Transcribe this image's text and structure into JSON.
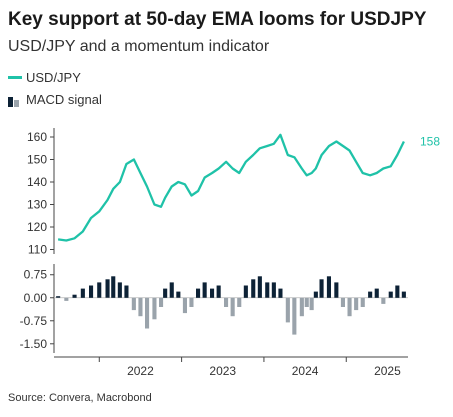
{
  "title": "Key support at 50-day EMA looms for USDJPY",
  "subtitle": "USD/JPY and a momentum indicator",
  "source": "Source: Convera, Macrobond",
  "colors": {
    "usdjpy": "#1fc2a8",
    "macd_pos": "#0d2236",
    "macd_neg": "#9aa3ab",
    "axis": "#444444",
    "grid": "#e6e6e6"
  },
  "chart_data": [
    {
      "type": "line",
      "legend": "USD/JPY",
      "last_value_label": "158",
      "ylim": [
        108,
        164
      ],
      "yticks": [
        110,
        120,
        130,
        140,
        150,
        160
      ],
      "xlim": [
        2021.45,
        2025.75
      ],
      "x": [
        2021.5,
        2021.6,
        2021.7,
        2021.8,
        2021.9,
        2022.0,
        2022.1,
        2022.17,
        2022.25,
        2022.33,
        2022.42,
        2022.5,
        2022.58,
        2022.67,
        2022.75,
        2022.8,
        2022.88,
        2022.96,
        2023.04,
        2023.12,
        2023.2,
        2023.28,
        2023.37,
        2023.45,
        2023.54,
        2023.62,
        2023.7,
        2023.78,
        2023.87,
        2023.95,
        2024.04,
        2024.12,
        2024.2,
        2024.29,
        2024.37,
        2024.46,
        2024.52,
        2024.58,
        2024.63,
        2024.7,
        2024.79,
        2024.88,
        2024.96,
        2025.04,
        2025.12,
        2025.2,
        2025.29,
        2025.37,
        2025.45,
        2025.54,
        2025.62,
        2025.7
      ],
      "values": [
        114.5,
        114.0,
        115.0,
        118.0,
        124.0,
        127.0,
        132.0,
        137.0,
        140.0,
        148.0,
        150.0,
        144.0,
        138.0,
        130.0,
        129.0,
        133.0,
        138.0,
        140.0,
        139.0,
        134.0,
        136.0,
        142.0,
        144.0,
        146.0,
        149.0,
        146.0,
        144.0,
        149.0,
        152.0,
        155.0,
        156.0,
        157.0,
        161.0,
        152.0,
        151.0,
        146.0,
        143.0,
        144.0,
        146.0,
        152.0,
        156.0,
        158.0,
        156.0,
        154.0,
        149.0,
        144.0,
        143.0,
        144.0,
        146.0,
        147.0,
        152.0,
        158.0
      ]
    },
    {
      "type": "bar",
      "legend": "MACD signal",
      "ylim": [
        -1.8,
        1.1
      ],
      "yticks": [
        "0.75",
        "0.00",
        "-0.75",
        "-1.50"
      ],
      "ytick_values": [
        0.75,
        0.0,
        -0.75,
        -1.5
      ],
      "xlim": [
        2021.45,
        2025.75
      ],
      "x_ticks": [
        "2022",
        "2023",
        "2024",
        "2025"
      ],
      "x_tick_positions": [
        2022.5,
        2023.5,
        2024.5,
        2025.5
      ],
      "x_year_boundaries": [
        2022.0,
        2023.0,
        2024.0,
        2025.0
      ],
      "x": [
        2021.5,
        2021.6,
        2021.7,
        2021.8,
        2021.9,
        2022.0,
        2022.1,
        2022.17,
        2022.25,
        2022.33,
        2022.42,
        2022.5,
        2022.58,
        2022.67,
        2022.75,
        2022.8,
        2022.88,
        2022.96,
        2023.04,
        2023.12,
        2023.2,
        2023.28,
        2023.37,
        2023.45,
        2023.54,
        2023.62,
        2023.7,
        2023.78,
        2023.87,
        2023.95,
        2024.04,
        2024.12,
        2024.2,
        2024.29,
        2024.37,
        2024.46,
        2024.52,
        2024.58,
        2024.63,
        2024.7,
        2024.79,
        2024.88,
        2024.96,
        2025.04,
        2025.12,
        2025.2,
        2025.29,
        2025.37,
        2025.45,
        2025.54,
        2025.62,
        2025.7
      ],
      "values": [
        0.05,
        -0.1,
        0.1,
        0.3,
        0.4,
        0.5,
        0.6,
        0.7,
        0.5,
        0.4,
        -0.4,
        -0.6,
        -1.0,
        -0.7,
        -0.3,
        0.3,
        0.5,
        0.2,
        -0.5,
        -0.3,
        0.3,
        0.5,
        0.3,
        0.4,
        -0.3,
        -0.6,
        -0.3,
        0.4,
        0.6,
        0.7,
        0.5,
        0.5,
        0.3,
        -0.8,
        -1.2,
        -0.6,
        -0.3,
        -0.4,
        0.2,
        0.6,
        0.7,
        0.5,
        -0.3,
        -0.6,
        -0.4,
        -0.3,
        0.2,
        0.3,
        -0.2,
        0.2,
        0.4,
        0.2
      ]
    }
  ]
}
